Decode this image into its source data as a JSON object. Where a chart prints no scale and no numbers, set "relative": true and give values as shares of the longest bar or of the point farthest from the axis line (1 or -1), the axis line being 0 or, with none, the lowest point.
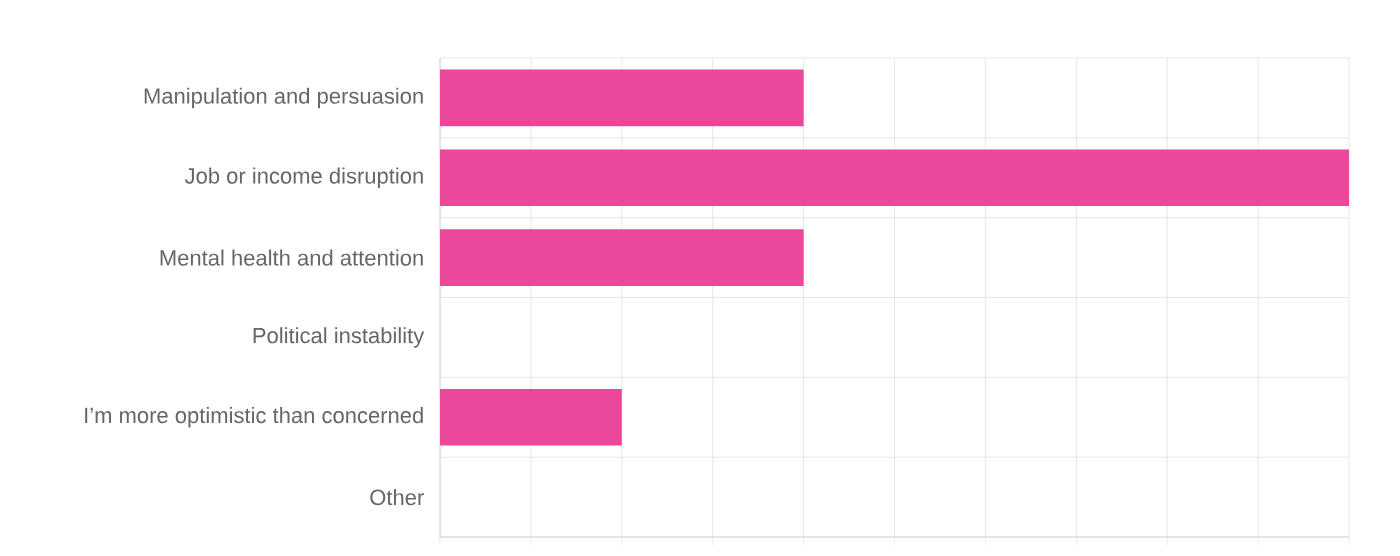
{
  "chart_data": {
    "type": "bar",
    "orientation": "horizontal",
    "relative": true,
    "categories": [
      "Manipulation and persuasion",
      "Job or income disruption",
      "Mental health and attention",
      "Political instability",
      "I’m more optimistic than concerned",
      "Other"
    ],
    "values": [
      0.4,
      1,
      0.4,
      0,
      0.2,
      0
    ],
    "color": "#ec4899",
    "grid": true
  }
}
